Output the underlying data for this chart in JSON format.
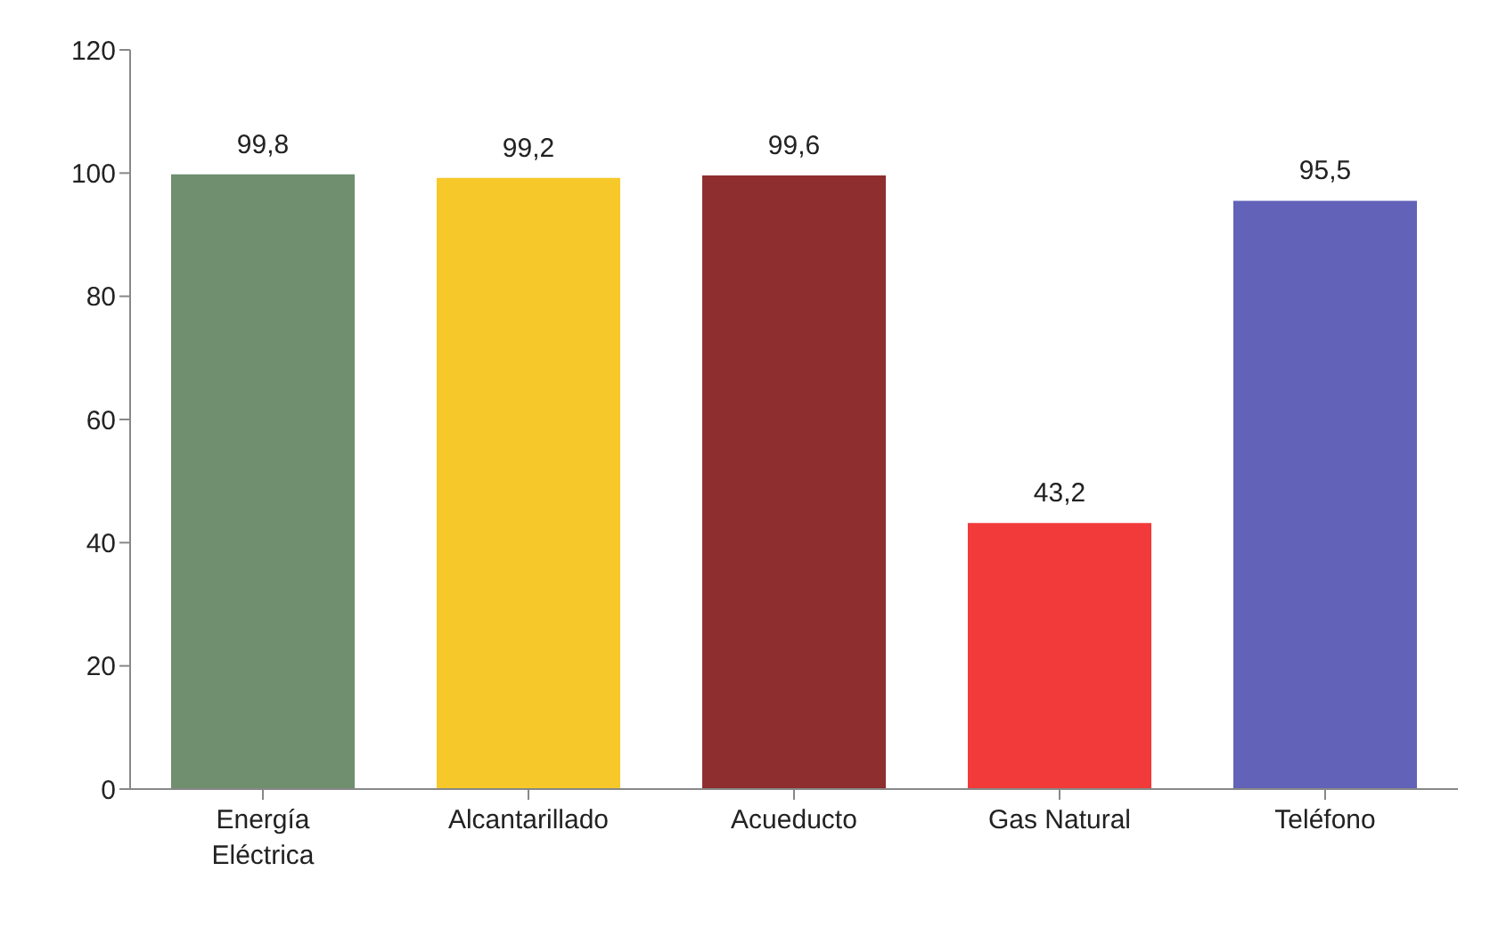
{
  "chart_data": {
    "type": "bar",
    "categories": [
      "Energía Eléctrica",
      "Alcantarillado",
      "Acueducto",
      "Gas Natural",
      "Teléfono"
    ],
    "values": [
      99.8,
      99.2,
      99.6,
      43.2,
      95.5
    ],
    "colors": [
      "#6f8f6f",
      "#f7c82a",
      "#8f2e2e",
      "#f23a3a",
      "#6262b8"
    ],
    "value_labels": [
      "99,8",
      "99,2",
      "99,6",
      "43,2",
      "95,5"
    ],
    "ylim": [
      0,
      120
    ],
    "yticks": [
      0,
      20,
      40,
      60,
      80,
      100,
      120
    ],
    "grid": false,
    "legend": false
  }
}
